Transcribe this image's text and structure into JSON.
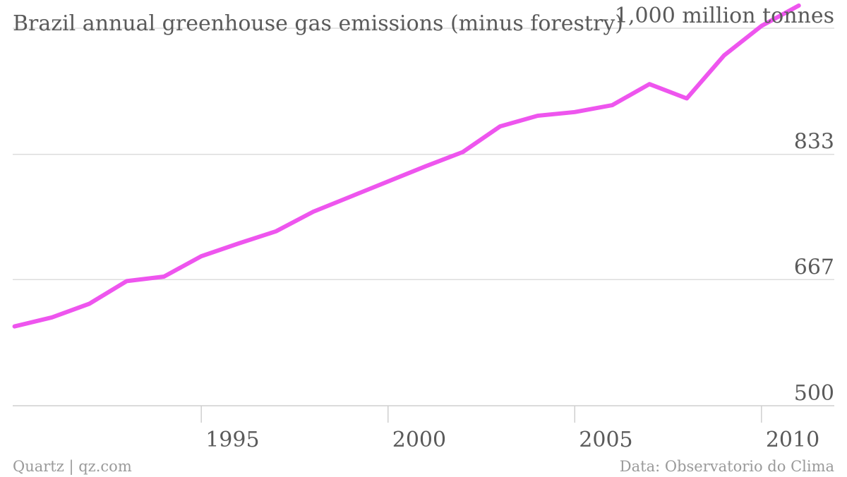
{
  "chart_data": {
    "type": "line",
    "title": "Brazil annual greenhouse gas emissions (minus forestry)",
    "unit_label": "1,000 million tonnes",
    "x": [
      1990,
      1991,
      1992,
      1993,
      1994,
      1995,
      1996,
      1997,
      1998,
      1999,
      2000,
      2001,
      2002,
      2003,
      2004,
      2005,
      2006,
      2007,
      2008,
      2009,
      2010,
      2011
    ],
    "series": [
      {
        "values": [
          605,
          617,
          635,
          665,
          671,
          698,
          715,
          731,
          757,
          777,
          797,
          817,
          836,
          870,
          884,
          889,
          898,
          926,
          907,
          964,
          1003,
          1030
        ],
        "color": "#ee55ee"
      }
    ],
    "yticks": [
      {
        "value": 500,
        "label": "500"
      },
      {
        "value": 667,
        "label": "667"
      },
      {
        "value": 833,
        "label": "833"
      },
      {
        "value": 1000,
        "label": "1,000 million tonnes"
      }
    ],
    "xticks": [
      {
        "value": 1995,
        "label": "1995"
      },
      {
        "value": 2000,
        "label": "2000"
      },
      {
        "value": 2005,
        "label": "2005"
      },
      {
        "value": 2010,
        "label": "2010"
      }
    ],
    "xlim": [
      1989.95,
      2011.95
    ],
    "ylim": [
      500,
      1000
    ],
    "grid": true
  },
  "footer": {
    "source_left": "Quartz | qz.com",
    "source_right": "Data: Observatorio do Clima"
  }
}
